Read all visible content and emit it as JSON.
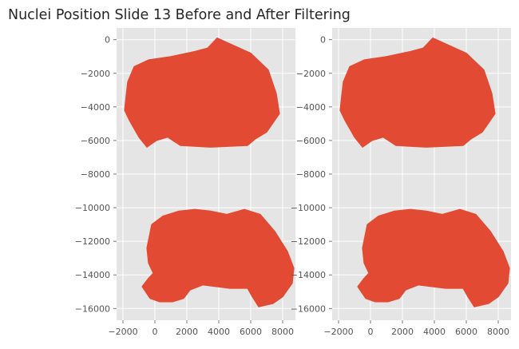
{
  "chart_data": {
    "type": "scatter",
    "title": "Nuclei Position Slide 13 Before and After Filtering",
    "style": {
      "background": "#e5e5e5",
      "grid": true,
      "grid_color": "#ffffff",
      "point_color": "#e24a33"
    },
    "panels": [
      {
        "name": "before",
        "xlim": [
          -2400,
          8800
        ],
        "ylim": [
          -16700,
          700
        ],
        "xticks": [
          -2000,
          0,
          2000,
          4000,
          6000,
          8000
        ],
        "xtick_labels": [
          "−2000",
          "0",
          "2000",
          "4000",
          "6000",
          "8000"
        ],
        "yticks": [
          0,
          -2000,
          -4000,
          -6000,
          -8000,
          -10000,
          -12000,
          -14000,
          -16000
        ],
        "ytick_labels": [
          "0",
          "−2000",
          "−4000",
          "−6000",
          "−8000",
          "−10000",
          "−12000",
          "−14000",
          "−16000"
        ],
        "regions": [
          {
            "name": "upper section",
            "outline": [
              [
                -1700,
                -2500
              ],
              [
                -1300,
                -1600
              ],
              [
                -400,
                -1200
              ],
              [
                1000,
                -1000
              ],
              [
                2500,
                -700
              ],
              [
                3300,
                -500
              ],
              [
                3500,
                -300
              ],
              [
                3900,
                100
              ],
              [
                4600,
                -200
              ],
              [
                6000,
                -800
              ],
              [
                7100,
                -1800
              ],
              [
                7600,
                -3200
              ],
              [
                7800,
                -4400
              ],
              [
                7000,
                -5500
              ],
              [
                6300,
                -5900
              ],
              [
                5800,
                -6300
              ],
              [
                3500,
                -6400
              ],
              [
                1600,
                -6300
              ],
              [
                800,
                -5800
              ],
              [
                100,
                -6000
              ],
              [
                -500,
                -6400
              ],
              [
                -1000,
                -5800
              ],
              [
                -1600,
                -4800
              ],
              [
                -1900,
                -4200
              ],
              [
                -1800,
                -3300
              ]
            ]
          },
          {
            "name": "lower section",
            "outline": [
              [
                -200,
                -11000
              ],
              [
                500,
                -10500
              ],
              [
                1500,
                -10200
              ],
              [
                2500,
                -10100
              ],
              [
                3500,
                -10200
              ],
              [
                4500,
                -10400
              ],
              [
                5600,
                -10100
              ],
              [
                6600,
                -10400
              ],
              [
                7500,
                -11400
              ],
              [
                8300,
                -12600
              ],
              [
                8700,
                -13600
              ],
              [
                8600,
                -14500
              ],
              [
                8000,
                -15300
              ],
              [
                7400,
                -15700
              ],
              [
                6500,
                -15900
              ],
              [
                6100,
                -15300
              ],
              [
                5800,
                -14800
              ],
              [
                4700,
                -14800
              ],
              [
                3000,
                -14600
              ],
              [
                2200,
                -14900
              ],
              [
                1800,
                -15400
              ],
              [
                1100,
                -15600
              ],
              [
                300,
                -15600
              ],
              [
                -300,
                -15400
              ],
              [
                -800,
                -14700
              ],
              [
                -400,
                -14200
              ],
              [
                -100,
                -13900
              ],
              [
                -400,
                -13300
              ],
              [
                -500,
                -12400
              ]
            ]
          }
        ]
      },
      {
        "name": "after",
        "xlim": [
          -2400,
          8800
        ],
        "ylim": [
          -16700,
          700
        ],
        "xticks": [
          -2000,
          0,
          2000,
          4000,
          6000,
          8000
        ],
        "xtick_labels": [
          "−2000",
          "0",
          "2000",
          "4000",
          "6000",
          "8000"
        ],
        "yticks": [
          0,
          -2000,
          -4000,
          -6000,
          -8000,
          -10000,
          -12000,
          -14000,
          -16000
        ],
        "ytick_labels": [
          "0",
          "−2000",
          "−4000",
          "−6000",
          "−8000",
          "−10000",
          "−12000",
          "−14000",
          "−16000"
        ],
        "regions": [
          {
            "name": "upper section",
            "outline": [
              [
                -1700,
                -2500
              ],
              [
                -1300,
                -1600
              ],
              [
                -400,
                -1200
              ],
              [
                1000,
                -1000
              ],
              [
                2500,
                -700
              ],
              [
                3300,
                -500
              ],
              [
                3500,
                -300
              ],
              [
                3900,
                100
              ],
              [
                4600,
                -200
              ],
              [
                6000,
                -800
              ],
              [
                7100,
                -1800
              ],
              [
                7600,
                -3200
              ],
              [
                7800,
                -4400
              ],
              [
                7000,
                -5500
              ],
              [
                6300,
                -5900
              ],
              [
                5800,
                -6300
              ],
              [
                3500,
                -6400
              ],
              [
                1600,
                -6300
              ],
              [
                800,
                -5800
              ],
              [
                100,
                -6000
              ],
              [
                -500,
                -6400
              ],
              [
                -1000,
                -5800
              ],
              [
                -1600,
                -4800
              ],
              [
                -1900,
                -4200
              ],
              [
                -1800,
                -3300
              ]
            ]
          },
          {
            "name": "lower section",
            "outline": [
              [
                -200,
                -11000
              ],
              [
                500,
                -10500
              ],
              [
                1500,
                -10200
              ],
              [
                2500,
                -10100
              ],
              [
                3500,
                -10200
              ],
              [
                4500,
                -10400
              ],
              [
                5600,
                -10100
              ],
              [
                6600,
                -10400
              ],
              [
                7500,
                -11400
              ],
              [
                8300,
                -12600
              ],
              [
                8700,
                -13600
              ],
              [
                8600,
                -14500
              ],
              [
                8000,
                -15300
              ],
              [
                7400,
                -15700
              ],
              [
                6500,
                -15900
              ],
              [
                6100,
                -15300
              ],
              [
                5800,
                -14800
              ],
              [
                4700,
                -14800
              ],
              [
                3000,
                -14600
              ],
              [
                2200,
                -14900
              ],
              [
                1800,
                -15400
              ],
              [
                1100,
                -15600
              ],
              [
                300,
                -15600
              ],
              [
                -300,
                -15400
              ],
              [
                -800,
                -14700
              ],
              [
                -400,
                -14200
              ],
              [
                -100,
                -13900
              ],
              [
                -400,
                -13300
              ],
              [
                -500,
                -12400
              ]
            ]
          }
        ]
      }
    ]
  }
}
